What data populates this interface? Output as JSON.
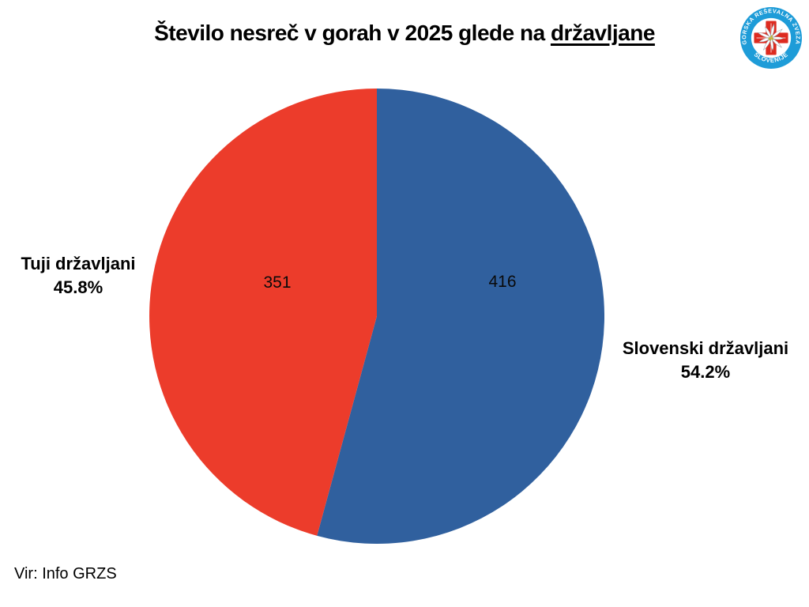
{
  "title": {
    "main": "Število nesreč v gorah v 2025 glede na ",
    "underlined": "državljane"
  },
  "source": "Vir: Info GRZS",
  "logo": {
    "top_text": "GORSKA REŠEVALNA ZVEZA",
    "bottom_text": "SLOVENIJE",
    "ring_color": "#1E9CD8",
    "cross_color": "#DD2B20",
    "flower_center_color": "#D5C23C"
  },
  "chart_data": {
    "type": "pie",
    "title": "Število nesreč v gorah v 2025 glede na državljane",
    "start_angle": "top",
    "direction": "clockwise",
    "legend_position": "none",
    "slices": [
      {
        "label": "Slovenski državljani",
        "value": 416,
        "percent": "54.2%",
        "color": "#30609E"
      },
      {
        "label": "Tuji državljani",
        "value": 351,
        "percent": "45.8%",
        "color": "#EC3C2B"
      }
    ]
  }
}
